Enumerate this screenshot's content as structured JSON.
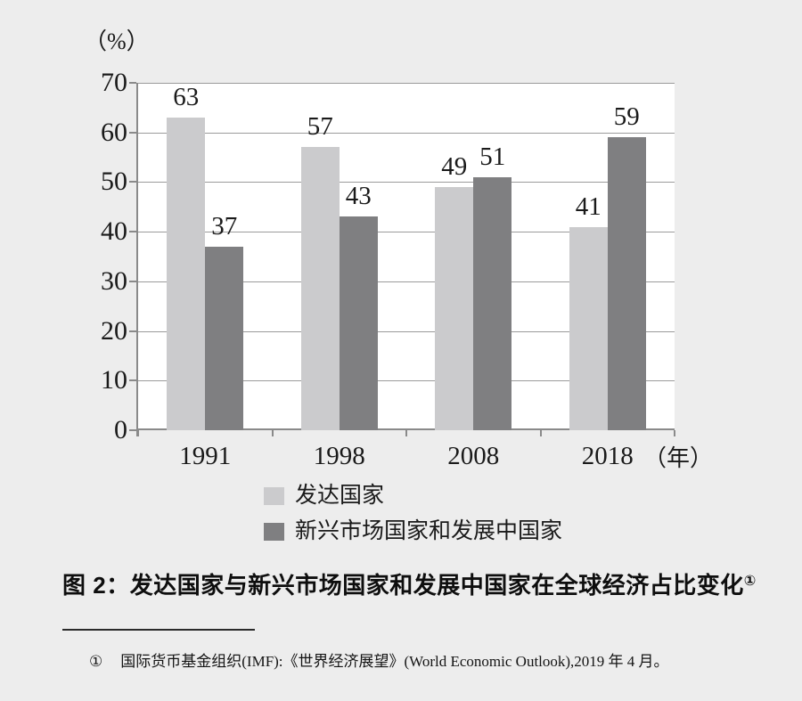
{
  "colors": {
    "background": "#ededed",
    "plot_background": "#ffffff",
    "gridline": "#9b9b9b",
    "axis": "#8a8a8a",
    "text": "#1a1a1a",
    "series_light": "#cbcbcd",
    "series_dark": "#7f7f81"
  },
  "chart_data": {
    "type": "bar",
    "title": "图 2：发达国家与新兴市场国家和发展中国家在全球经济占比变化",
    "unit_label": "（%）",
    "x_unit_label": "（年）",
    "categories": [
      "1991",
      "1998",
      "2008",
      "2018"
    ],
    "series": [
      {
        "name": "发达国家",
        "color": "#cbcbcd",
        "values": [
          63,
          57,
          49,
          41
        ]
      },
      {
        "name": "新兴市场国家和发展中国家",
        "color": "#7f7f81",
        "values": [
          37,
          43,
          51,
          59
        ]
      }
    ],
    "ylim": [
      0,
      70
    ],
    "yticks": [
      0,
      10,
      20,
      30,
      40,
      50,
      60,
      70
    ],
    "grid": true,
    "legend_position": "bottom",
    "value_labels": true
  },
  "caption": {
    "prefix": "图 2：",
    "text": "发达国家与新兴市场国家和发展中国家在全球经济占比变化",
    "superscript": "①"
  },
  "footnote": {
    "marker": "①",
    "text": "国际货币基金组织(IMF):《世界经济展望》(World Economic Outlook),2019 年 4 月。"
  }
}
